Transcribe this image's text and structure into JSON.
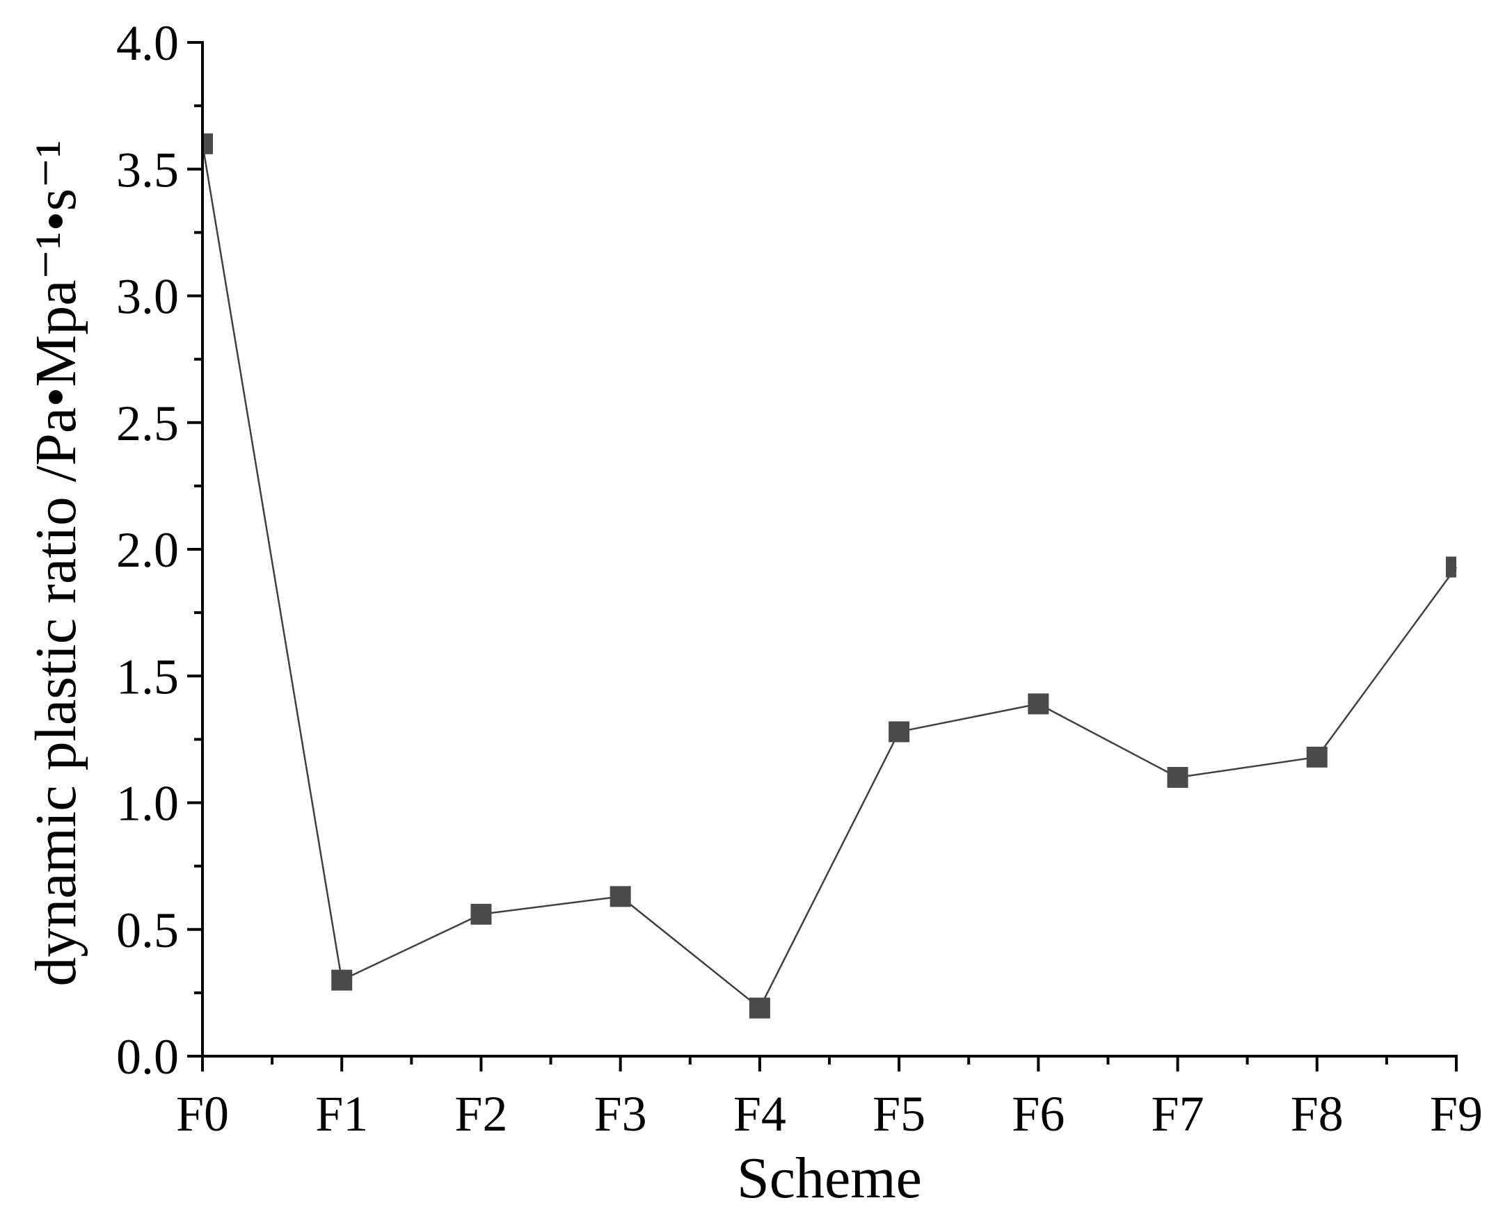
{
  "chart_data": {
    "type": "line",
    "title": "",
    "xlabel": "Scheme",
    "ylabel": "dynamic plastic ratio /Pa•Mpa⁻¹•s⁻¹",
    "categories": [
      "F0",
      "F1",
      "F2",
      "F3",
      "F4",
      "F5",
      "F6",
      "F7",
      "F8",
      "F9"
    ],
    "series": [
      {
        "values": [
          3.6,
          0.3,
          0.56,
          0.63,
          0.19,
          1.28,
          1.39,
          1.1,
          1.18,
          1.93
        ]
      }
    ],
    "ylim": [
      0,
      4.0
    ],
    "yticks": [
      "0.0",
      "0.5",
      "1.0",
      "1.5",
      "2.0",
      "2.5",
      "3.0",
      "3.5",
      "4.0"
    ],
    "grid": false,
    "legend": "none",
    "marker": "square",
    "colors": {
      "series": "#4a4a4a",
      "line": "#404040",
      "axis": "#000000"
    }
  }
}
